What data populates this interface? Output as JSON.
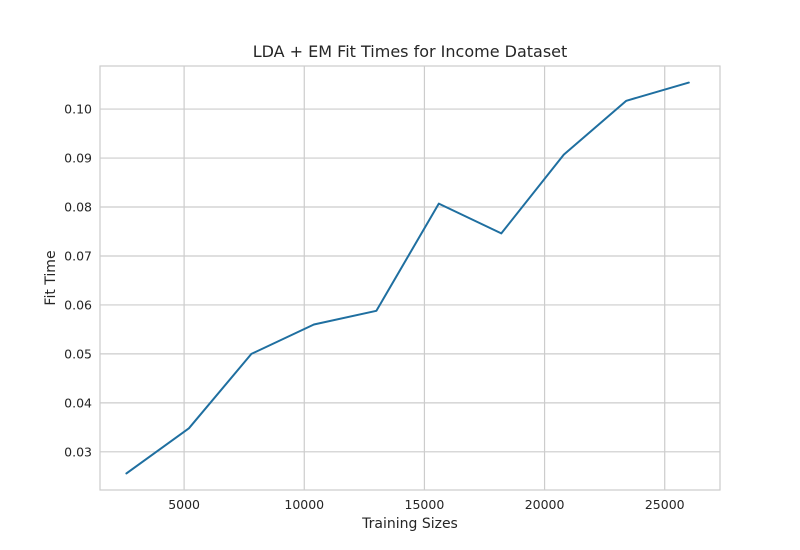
{
  "chart_data": {
    "type": "line",
    "title": "LDA + EM Fit Times for Income Dataset",
    "xlabel": "Training Sizes",
    "ylabel": "Fit Time",
    "xlim": [
      1500,
      27300
    ],
    "ylim": [
      0.0222,
      0.1088
    ],
    "xticks": [
      5000,
      10000,
      15000,
      20000,
      25000
    ],
    "xtick_labels": [
      "5000",
      "10000",
      "15000",
      "20000",
      "25000"
    ],
    "yticks": [
      0.03,
      0.04,
      0.05,
      0.06,
      0.07,
      0.08,
      0.09,
      0.1
    ],
    "ytick_labels": [
      "0.03",
      "0.04",
      "0.05",
      "0.06",
      "0.07",
      "0.08",
      "0.09",
      "0.10"
    ],
    "grid": true,
    "series": [
      {
        "color": "#1f6fa0",
        "x": [
          2600,
          5200,
          7800,
          10400,
          13000,
          15600,
          18200,
          20800,
          23400,
          26000
        ],
        "y": [
          0.0256,
          0.0348,
          0.05,
          0.056,
          0.0588,
          0.0807,
          0.0746,
          0.0907,
          0.1017,
          0.1054
        ]
      }
    ]
  }
}
